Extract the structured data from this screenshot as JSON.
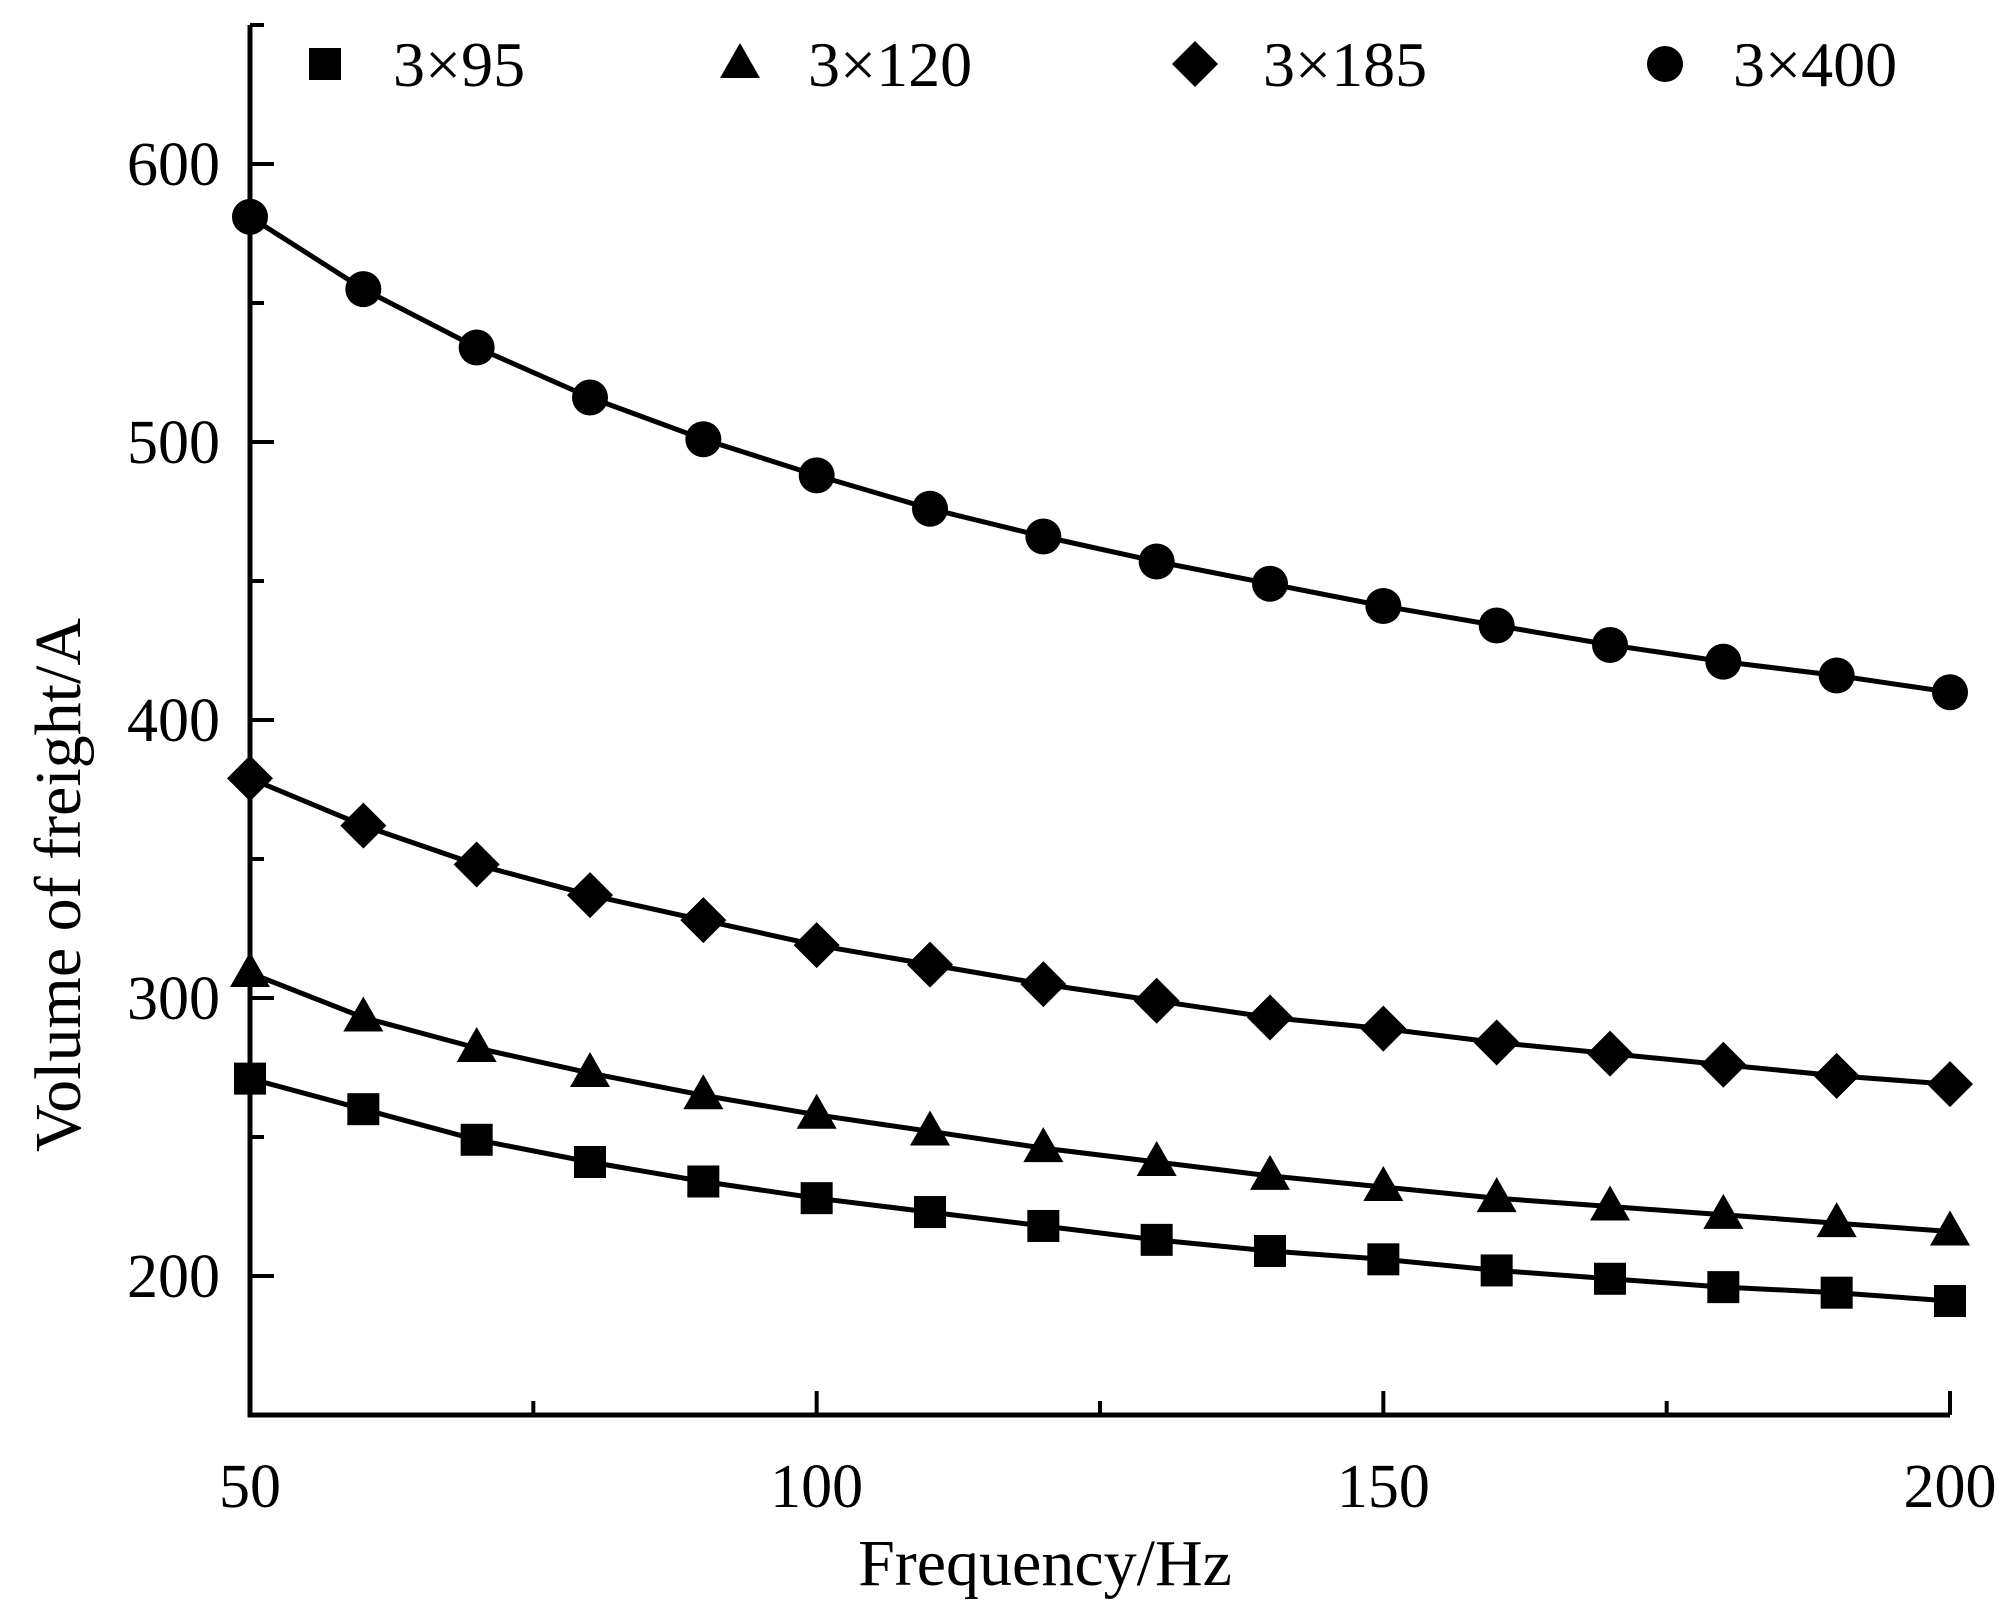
{
  "chart_data": {
    "type": "line",
    "title": "",
    "xlabel": "Frequency/Hz",
    "ylabel": "Volume of freight/A",
    "xlim": [
      50,
      200
    ],
    "ylim": [
      150,
      650
    ],
    "x_ticks": [
      50,
      100,
      150,
      200
    ],
    "x_tick_labels": [
      "50",
      "100",
      "150",
      "200"
    ],
    "y_ticks": [
      200,
      300,
      400,
      500,
      600
    ],
    "y_tick_labels": [
      "200",
      "300",
      "400",
      "500",
      "600"
    ],
    "grid": false,
    "legend_position": "top",
    "x": [
      50,
      60,
      70,
      80,
      90,
      100,
      110,
      120,
      130,
      140,
      150,
      160,
      170,
      180,
      190,
      200
    ],
    "series": [
      {
        "name": "3×95",
        "marker": "square",
        "values": [
          271,
          260,
          249,
          241,
          234,
          228,
          223,
          218,
          213,
          209,
          206,
          202,
          199,
          196,
          194,
          191
        ]
      },
      {
        "name": "3×120",
        "marker": "triangle",
        "values": [
          309,
          293,
          282,
          273,
          265,
          258,
          252,
          246,
          241,
          236,
          232,
          228,
          225,
          222,
          219,
          216
        ]
      },
      {
        "name": "3×185",
        "marker": "diamond",
        "values": [
          379,
          362,
          348,
          337,
          328,
          319,
          312,
          305,
          299,
          293,
          289,
          284,
          280,
          276,
          272,
          269
        ]
      },
      {
        "name": "3×400",
        "marker": "circle",
        "values": [
          581,
          555,
          534,
          516,
          501,
          488,
          476,
          466,
          457,
          449,
          441,
          434,
          427,
          421,
          416,
          410
        ]
      }
    ]
  }
}
